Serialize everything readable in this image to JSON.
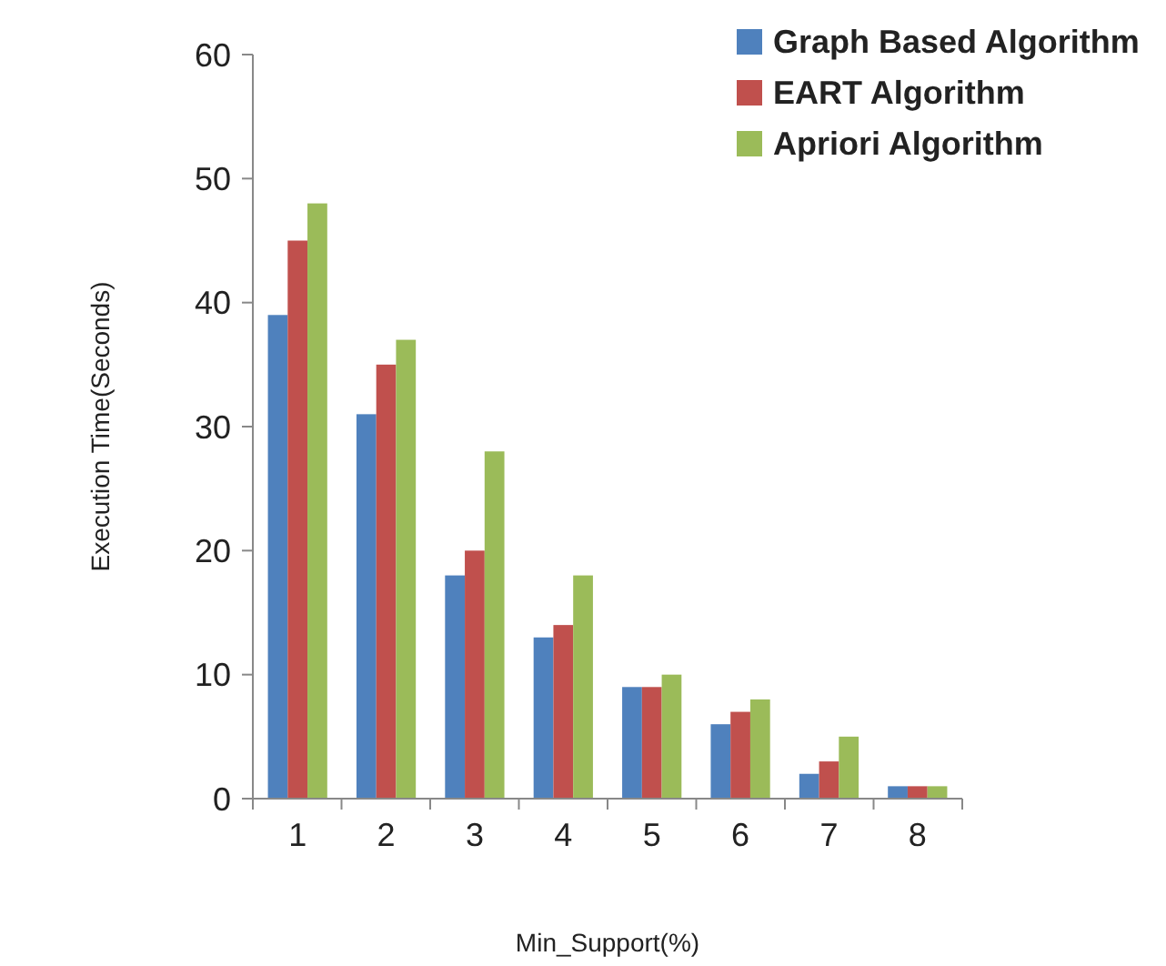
{
  "chart_data": {
    "type": "bar",
    "xlabel": "Min_Support(%)",
    "ylabel": "Execution Time(Seconds)",
    "categories": [
      "1",
      "2",
      "3",
      "4",
      "5",
      "6",
      "7",
      "8"
    ],
    "series": [
      {
        "name": "Graph Based Algorithm",
        "color": "#4f81bd",
        "values": [
          39,
          31,
          18,
          13,
          9,
          6,
          2,
          1
        ]
      },
      {
        "name": "EART Algorithm",
        "color": "#c0504d",
        "values": [
          45,
          35,
          20,
          14,
          9,
          7,
          3,
          1
        ]
      },
      {
        "name": "Apriori Algorithm",
        "color": "#9bbb59",
        "values": [
          48,
          37,
          28,
          18,
          10,
          8,
          5,
          1
        ]
      }
    ],
    "ylim": [
      0,
      60
    ],
    "yticks": [
      0,
      10,
      20,
      30,
      40,
      50,
      60
    ],
    "grid": false,
    "legend": "top right"
  }
}
